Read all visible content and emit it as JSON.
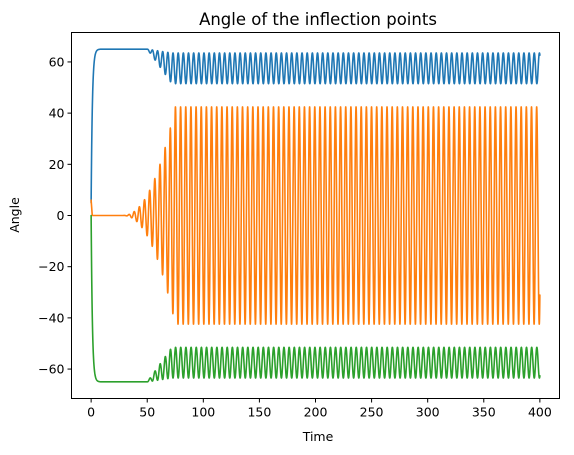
{
  "chart_data": {
    "type": "line",
    "title": "Angle of the inflection points",
    "xlabel": "Time",
    "ylabel": "Angle",
    "xlim": [
      -17.5,
      417.5
    ],
    "ylim": [
      -71.5,
      71.5
    ],
    "xticks": [
      0,
      50,
      100,
      150,
      200,
      250,
      300,
      350,
      400
    ],
    "yticks": [
      -60,
      -40,
      -20,
      0,
      20,
      40,
      60
    ],
    "xtick_labels": [
      "0",
      "50",
      "100",
      "150",
      "200",
      "250",
      "300",
      "350",
      "400"
    ],
    "ytick_labels": [
      "−60",
      "−40",
      "−20",
      "0",
      "20",
      "40",
      "60"
    ],
    "grid": false,
    "series": [
      {
        "color": "#1f77b4",
        "description": "rises to 65 by t≈5, flat until t≈50, then oscillates between about 52 and 64 (period ≈4.6) until t=400",
        "x": [
          0,
          1,
          2,
          3,
          5,
          10,
          50,
          55,
          60,
          65,
          70,
          400
        ],
        "y": [
          5,
          52,
          61,
          63.5,
          64.7,
          65,
          65,
          64,
          61,
          58,
          57.5,
          57.5
        ]
      },
      {
        "color": "#ff7f0e",
        "description": "starts near 6, settles at 0, small growing oscillation from t≈30, full oscillation between -42.5 and 42.5 (period ≈4.6) from t≈75 to 400",
        "x": [
          0,
          1,
          5,
          30,
          45,
          55,
          60,
          65,
          70,
          75,
          400
        ],
        "y": [
          6,
          0,
          0,
          0,
          2,
          6,
          15,
          28,
          38,
          42.5,
          37.5
        ]
      },
      {
        "color": "#2ca02c",
        "description": "falls to -65 by t≈5, flat until t≈50, then oscillates between about -63.5 and -51.5 (period ≈4.6) until t=400",
        "x": [
          0,
          1,
          2,
          3,
          5,
          10,
          50,
          55,
          60,
          65,
          70,
          400
        ],
        "y": [
          0,
          -52,
          -61,
          -63.5,
          -64.7,
          -65,
          -65,
          -64,
          -61,
          -58,
          -57.5,
          -52
        ]
      }
    ]
  }
}
